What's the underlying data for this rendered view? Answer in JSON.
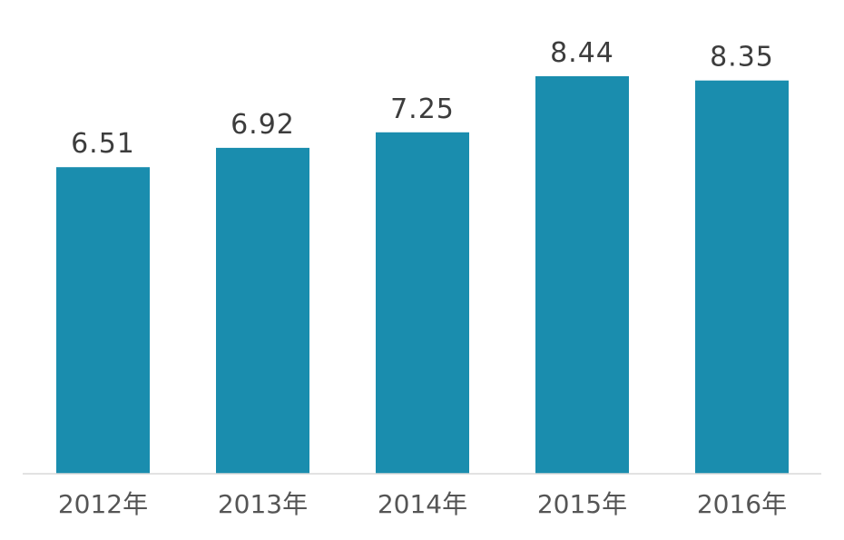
{
  "chart_data": {
    "type": "bar",
    "categories": [
      "2012年",
      "2013年",
      "2014年",
      "2015年",
      "2016年"
    ],
    "values": [
      6.51,
      6.92,
      7.25,
      8.44,
      8.35
    ],
    "title": "",
    "xlabel": "",
    "ylabel": "",
    "ylim": [
      0,
      8.44
    ],
    "grid": false,
    "legend": "none",
    "bar_color": "#1a8dae",
    "data_labels": true
  }
}
